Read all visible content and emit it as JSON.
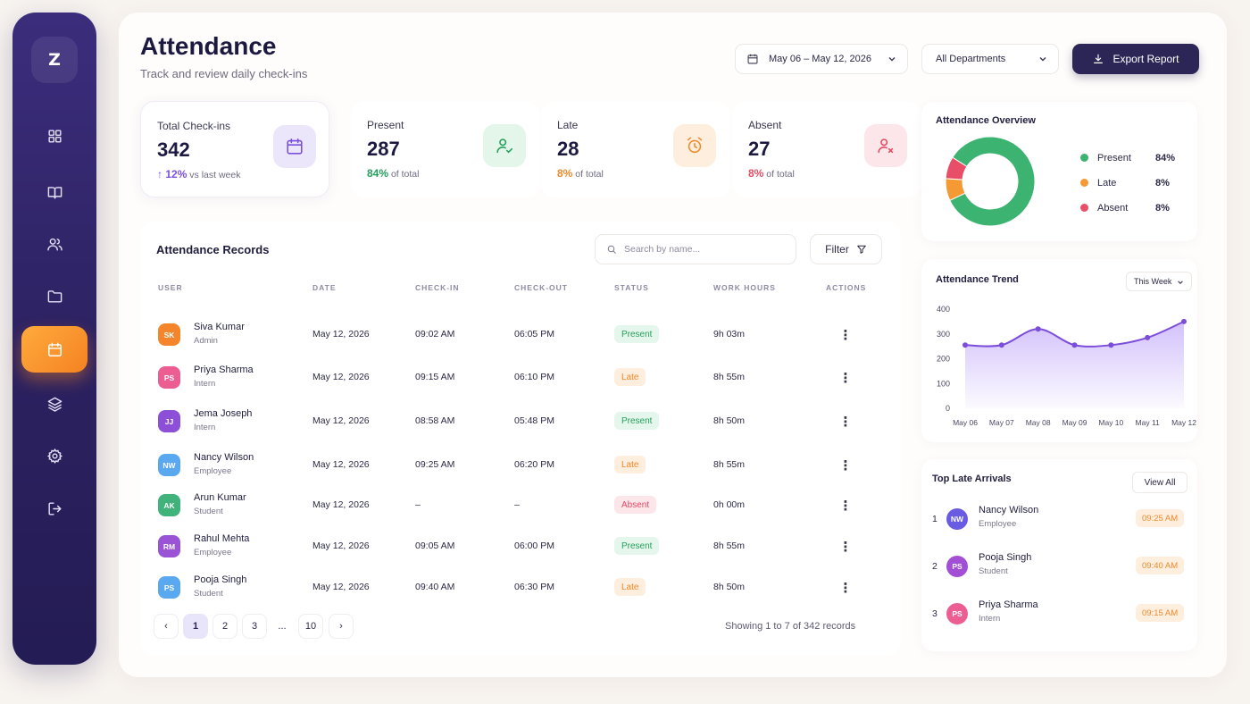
{
  "sidebar": {
    "logo": "Z",
    "items": [
      {
        "name": "dashboard",
        "icon": "grid-icon"
      },
      {
        "name": "courses",
        "icon": "book-icon"
      },
      {
        "name": "users",
        "icon": "users-icon"
      },
      {
        "name": "files",
        "icon": "folder-icon"
      },
      {
        "name": "attendance",
        "icon": "calendar-icon",
        "active": true
      },
      {
        "name": "layers",
        "icon": "layers-icon"
      },
      {
        "name": "settings",
        "icon": "gear-icon"
      },
      {
        "name": "logout",
        "icon": "logout-icon"
      }
    ]
  },
  "header": {
    "title": "Attendance",
    "subtitle": "Track and review daily check-ins",
    "date_range": "May 06 – May 12, 2026",
    "department": "All Departments",
    "export_label": "Export Report"
  },
  "stats": [
    {
      "label": "Total Check-ins",
      "value": "342",
      "delta": "12%",
      "delta_text": "vs last week",
      "color": "#7b4fe0"
    },
    {
      "label": "Present",
      "value": "287",
      "pct": "84%",
      "pct_text": "of total",
      "color": "#25a05c"
    },
    {
      "label": "Late",
      "value": "28",
      "pct": "8%",
      "pct_text": "of total",
      "color": "#ef8a2c"
    },
    {
      "label": "Absent",
      "value": "27",
      "pct": "8%",
      "pct_text": "of total",
      "color": "#e54b63"
    }
  ],
  "records": {
    "title": "Attendance Records",
    "search_placeholder": "Search by name...",
    "filter_label": "Filter",
    "columns": [
      "USER",
      "DATE",
      "CHECK-IN",
      "CHECK-OUT",
      "STATUS",
      "WORK HOURS",
      "ACTIONS"
    ],
    "rows": [
      {
        "initials": "SK",
        "name": "Siva Kumar",
        "role": "Admin",
        "date": "May 12, 2026",
        "check_in": "09:02 AM",
        "check_out": "06:05 PM",
        "status": "Present",
        "hours": "9h 03m",
        "avatar_color": "#f5852a"
      },
      {
        "initials": "PS",
        "name": "Priya Sharma",
        "role": "Intern",
        "date": "May 12, 2026",
        "check_in": "09:15 AM",
        "check_out": "06:10 PM",
        "status": "Late",
        "hours": "8h 55m",
        "avatar_color": "#ec5d92"
      },
      {
        "initials": "JJ",
        "name": "Jema Joseph",
        "role": "Intern",
        "date": "May 12, 2026",
        "check_in": "08:58 AM",
        "check_out": "05:48 PM",
        "status": "Present",
        "hours": "8h 50m",
        "avatar_color": "#8e4fd8"
      },
      {
        "initials": "NW",
        "name": "Nancy Wilson",
        "role": "Employee",
        "date": "May 12, 2026",
        "check_in": "09:25 AM",
        "check_out": "06:20 PM",
        "status": "Late",
        "hours": "8h 55m",
        "avatar_color": "#5aa8ef"
      },
      {
        "initials": "AK",
        "name": "Arun Kumar",
        "role": "Student",
        "date": "May 12, 2026",
        "check_in": "–",
        "check_out": "–",
        "status": "Absent",
        "hours": "0h 00m",
        "avatar_color": "#3fb37a"
      },
      {
        "initials": "RM",
        "name": "Rahul Mehta",
        "role": "Employee",
        "date": "May 12, 2026",
        "check_in": "09:05 AM",
        "check_out": "06:00 PM",
        "status": "Present",
        "hours": "8h 55m",
        "avatar_color": "#9b53d6"
      },
      {
        "initials": "PS",
        "name": "Pooja Singh",
        "role": "Student",
        "date": "May 12, 2026",
        "check_in": "09:40 AM",
        "check_out": "06:30 PM",
        "status": "Late",
        "hours": "8h 50m",
        "avatar_color": "#5aa8ef"
      }
    ],
    "pages": [
      "1",
      "2",
      "3",
      "...",
      "10"
    ],
    "showing": "Showing 1 to 7 of 342 records"
  },
  "overview": {
    "title": "Attendance Overview",
    "segments": [
      {
        "label": "Present",
        "pct": "84%",
        "value": 84,
        "color": "#3cb371"
      },
      {
        "label": "Late",
        "pct": "8%",
        "value": 8,
        "color": "#f39a34"
      },
      {
        "label": "Absent",
        "pct": "8%",
        "value": 8,
        "color": "#e94e68"
      }
    ]
  },
  "trend": {
    "title": "Attendance Trend",
    "period": "This Week",
    "chart_data": {
      "type": "area",
      "x": [
        "May 06",
        "May 07",
        "May 08",
        "May 09",
        "May 10",
        "May 11",
        "May 12"
      ],
      "series": [
        {
          "values": [
            255,
            255,
            320,
            255,
            255,
            285,
            350
          ]
        }
      ],
      "yticks": [
        "0",
        "100",
        "200",
        "300",
        "400"
      ],
      "ylim": [
        0,
        400
      ],
      "color": "#8b5cf6"
    }
  },
  "late_arrivals": {
    "title": "Top Late Arrivals",
    "view_all": "View All",
    "items": [
      {
        "rank": "1",
        "initials": "NW",
        "name": "Nancy Wilson",
        "role": "Employee",
        "time": "09:25 AM",
        "avatar_color": "#6a5be3"
      },
      {
        "rank": "2",
        "initials": "PS",
        "name": "Pooja Singh",
        "role": "Student",
        "time": "09:40 AM",
        "avatar_color": "#a24fd6"
      },
      {
        "rank": "3",
        "initials": "PS",
        "name": "Priya Sharma",
        "role": "Intern",
        "time": "09:15 AM",
        "avatar_color": "#ec5d92"
      }
    ]
  }
}
